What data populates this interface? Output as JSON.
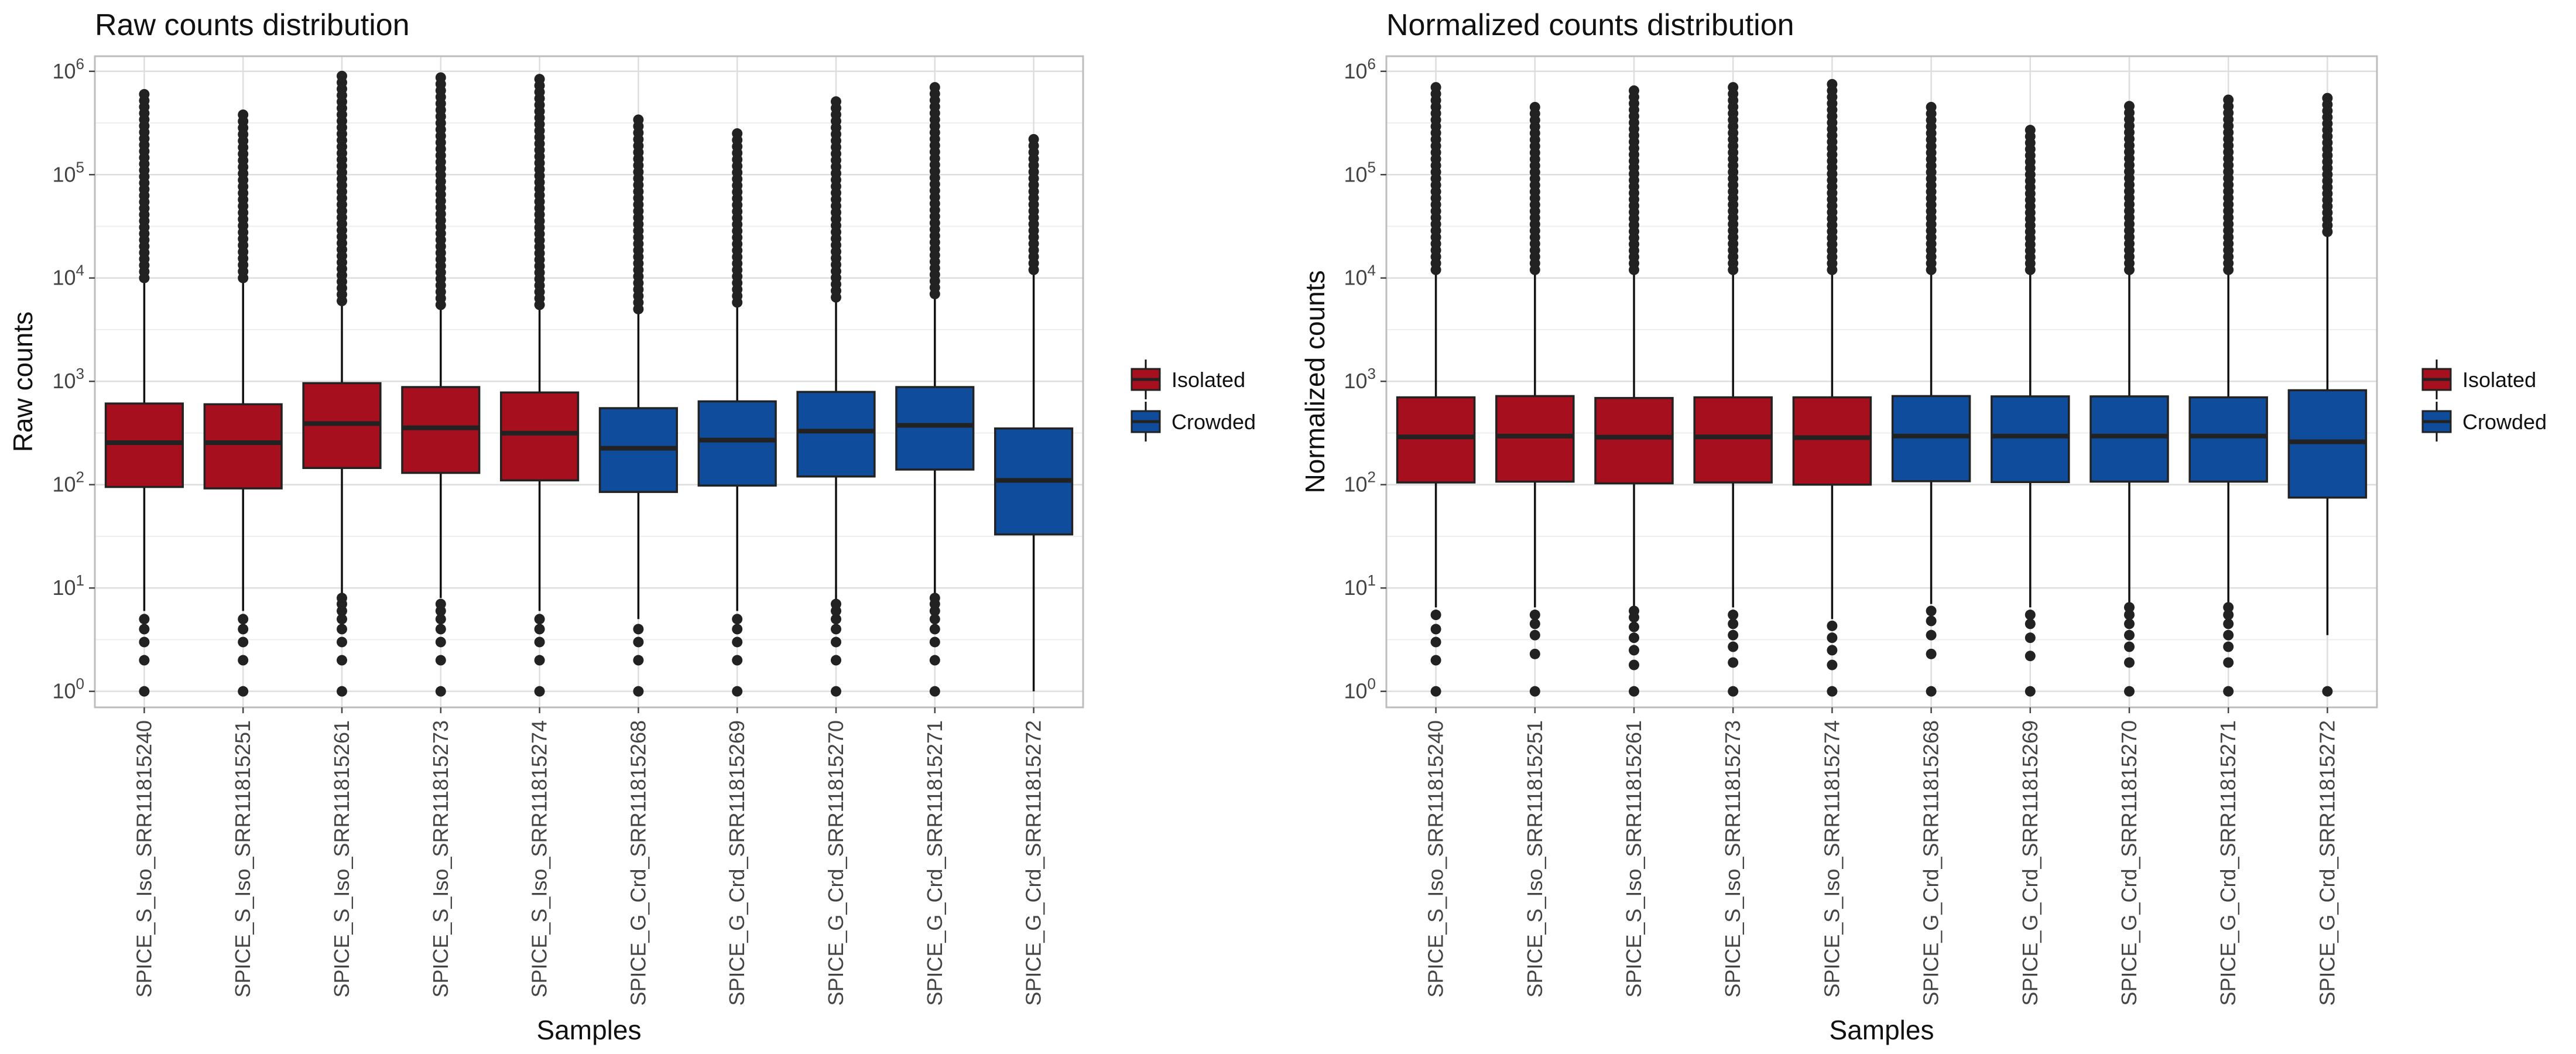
{
  "chart_data": [
    {
      "type": "box",
      "title": "Raw counts distribution",
      "xlabel": "Samples",
      "ylabel": "Raw counts",
      "y_scale": "log10",
      "ylim": [
        0.7,
        1400000
      ],
      "y_ticks": [
        {
          "base": "10",
          "exp": "0"
        },
        {
          "base": "10",
          "exp": "1"
        },
        {
          "base": "10",
          "exp": "2"
        },
        {
          "base": "10",
          "exp": "3"
        },
        {
          "base": "10",
          "exp": "4"
        },
        {
          "base": "10",
          "exp": "5"
        },
        {
          "base": "10",
          "exp": "6"
        }
      ],
      "grid": true,
      "legend_position": "right",
      "legend": [
        {
          "label": "Isolated",
          "color": "#A50F1E"
        },
        {
          "label": "Crowded",
          "color": "#0F4C9B"
        }
      ],
      "categories": [
        "SPICE_S_Iso_SRR11815240",
        "SPICE_S_Iso_SRR11815251",
        "SPICE_S_Iso_SRR11815261",
        "SPICE_S_Iso_SRR11815273",
        "SPICE_S_Iso_SRR11815274",
        "SPICE_G_Crd_SRR11815268",
        "SPICE_G_Crd_SRR11815269",
        "SPICE_G_Crd_SRR11815270",
        "SPICE_G_Crd_SRR11815271",
        "SPICE_G_Crd_SRR11815272"
      ],
      "boxes": [
        {
          "group": "Isolated",
          "q1": 95,
          "median": 255,
          "q3": 610,
          "whisker_low": 6,
          "whisker_high": 10000,
          "out_low": [
            1,
            2,
            3,
            4,
            5
          ],
          "out_high": [
            10000,
            600000
          ]
        },
        {
          "group": "Isolated",
          "q1": 92,
          "median": 255,
          "q3": 600,
          "whisker_low": 6,
          "whisker_high": 10000,
          "out_low": [
            1,
            2,
            3,
            4,
            5
          ],
          "out_high": [
            10000,
            380000
          ]
        },
        {
          "group": "Isolated",
          "q1": 145,
          "median": 390,
          "q3": 960,
          "whisker_low": 8.5,
          "whisker_high": 6000,
          "out_low": [
            1,
            2,
            3,
            4,
            5,
            6,
            7,
            8
          ],
          "out_high": [
            6000,
            900000
          ]
        },
        {
          "group": "Isolated",
          "q1": 130,
          "median": 355,
          "q3": 880,
          "whisker_low": 8,
          "whisker_high": 5500,
          "out_low": [
            1,
            2,
            3,
            4,
            5,
            6,
            7
          ],
          "out_high": [
            5500,
            870000
          ]
        },
        {
          "group": "Isolated",
          "q1": 110,
          "median": 315,
          "q3": 780,
          "whisker_low": 6,
          "whisker_high": 5500,
          "out_low": [
            1,
            2,
            3,
            4,
            5
          ],
          "out_high": [
            5500,
            840000
          ]
        },
        {
          "group": "Crowded",
          "q1": 85,
          "median": 225,
          "q3": 550,
          "whisker_low": 5,
          "whisker_high": 5000,
          "out_low": [
            1,
            2,
            3,
            4
          ],
          "out_high": [
            5000,
            340000
          ]
        },
        {
          "group": "Crowded",
          "q1": 98,
          "median": 270,
          "q3": 640,
          "whisker_low": 6,
          "whisker_high": 5800,
          "out_low": [
            1,
            2,
            3,
            4,
            5
          ],
          "out_high": [
            5800,
            250000
          ]
        },
        {
          "group": "Crowded",
          "q1": 120,
          "median": 330,
          "q3": 790,
          "whisker_low": 7.5,
          "whisker_high": 6500,
          "out_low": [
            1,
            2,
            3,
            4,
            5,
            6,
            7
          ],
          "out_high": [
            6500,
            510000
          ]
        },
        {
          "group": "Crowded",
          "q1": 140,
          "median": 375,
          "q3": 880,
          "whisker_low": 8.5,
          "whisker_high": 7000,
          "out_low": [
            1,
            2,
            3,
            4,
            5,
            6,
            7,
            8
          ],
          "out_high": [
            7000,
            700000
          ]
        },
        {
          "group": "Crowded",
          "q1": 33,
          "median": 110,
          "q3": 350,
          "whisker_low": 1,
          "whisker_high": 12000,
          "out_low": [],
          "out_high": [
            12000,
            220000
          ]
        }
      ]
    },
    {
      "type": "box",
      "title": "Normalized counts distribution",
      "xlabel": "Samples",
      "ylabel": "Normalized counts",
      "y_scale": "log10",
      "ylim": [
        0.7,
        1400000
      ],
      "y_ticks": [
        {
          "base": "10",
          "exp": "0"
        },
        {
          "base": "10",
          "exp": "1"
        },
        {
          "base": "10",
          "exp": "2"
        },
        {
          "base": "10",
          "exp": "3"
        },
        {
          "base": "10",
          "exp": "4"
        },
        {
          "base": "10",
          "exp": "5"
        },
        {
          "base": "10",
          "exp": "6"
        }
      ],
      "grid": true,
      "legend_position": "right",
      "legend": [
        {
          "label": "Isolated",
          "color": "#A50F1E"
        },
        {
          "label": "Crowded",
          "color": "#0F4C9B"
        }
      ],
      "categories": [
        "SPICE_S_Iso_SRR11815240",
        "SPICE_S_Iso_SRR11815251",
        "SPICE_S_Iso_SRR11815261",
        "SPICE_S_Iso_SRR11815273",
        "SPICE_S_Iso_SRR11815274",
        "SPICE_G_Crd_SRR11815268",
        "SPICE_G_Crd_SRR11815269",
        "SPICE_G_Crd_SRR11815270",
        "SPICE_G_Crd_SRR11815271",
        "SPICE_G_Crd_SRR11815272"
      ],
      "boxes": [
        {
          "group": "Isolated",
          "q1": 105,
          "median": 290,
          "q3": 700,
          "whisker_low": 6.5,
          "whisker_high": 12000,
          "out_low": [
            1,
            2,
            3,
            4,
            5.5
          ],
          "out_high": [
            12000,
            700000
          ]
        },
        {
          "group": "Isolated",
          "q1": 107,
          "median": 295,
          "q3": 720,
          "whisker_low": 6.5,
          "whisker_high": 12000,
          "out_low": [
            1,
            2.3,
            3.5,
            4.5,
            5.5
          ],
          "out_high": [
            12000,
            450000
          ]
        },
        {
          "group": "Isolated",
          "q1": 103,
          "median": 288,
          "q3": 690,
          "whisker_low": 6.5,
          "whisker_high": 12000,
          "out_low": [
            1,
            1.8,
            2.5,
            3.3,
            4.2,
            5.2,
            6
          ],
          "out_high": [
            12000,
            650000
          ]
        },
        {
          "group": "Isolated",
          "q1": 105,
          "median": 290,
          "q3": 700,
          "whisker_low": 6.5,
          "whisker_high": 12000,
          "out_low": [
            1,
            1.9,
            2.7,
            3.5,
            4.5,
            5.5
          ],
          "out_high": [
            12000,
            700000
          ]
        },
        {
          "group": "Isolated",
          "q1": 100,
          "median": 285,
          "q3": 700,
          "whisker_low": 5,
          "whisker_high": 12000,
          "out_low": [
            1,
            1.8,
            2.5,
            3.3,
            4.3
          ],
          "out_high": [
            12000,
            750000
          ]
        },
        {
          "group": "Crowded",
          "q1": 108,
          "median": 295,
          "q3": 720,
          "whisker_low": 7,
          "whisker_high": 12000,
          "out_low": [
            1,
            2.3,
            3.5,
            4.8,
            6
          ],
          "out_high": [
            12000,
            450000
          ]
        },
        {
          "group": "Crowded",
          "q1": 106,
          "median": 295,
          "q3": 715,
          "whisker_low": 6.5,
          "whisker_high": 12000,
          "out_low": [
            1,
            2.2,
            3.3,
            4.5,
            5.5
          ],
          "out_high": [
            12000,
            270000
          ]
        },
        {
          "group": "Crowded",
          "q1": 107,
          "median": 295,
          "q3": 715,
          "whisker_low": 7,
          "whisker_high": 12000,
          "out_low": [
            1,
            1.9,
            2.7,
            3.5,
            4.5,
            5.5,
            6.5
          ],
          "out_high": [
            12000,
            460000
          ]
        },
        {
          "group": "Crowded",
          "q1": 107,
          "median": 295,
          "q3": 700,
          "whisker_low": 7,
          "whisker_high": 12000,
          "out_low": [
            1,
            1.9,
            2.7,
            3.5,
            4.5,
            5.5,
            6.5
          ],
          "out_high": [
            12000,
            530000
          ]
        },
        {
          "group": "Crowded",
          "q1": 75,
          "median": 260,
          "q3": 820,
          "whisker_low": 3.5,
          "whisker_high": 28000,
          "out_low": [
            1
          ],
          "out_high": [
            28000,
            550000
          ]
        }
      ]
    }
  ]
}
